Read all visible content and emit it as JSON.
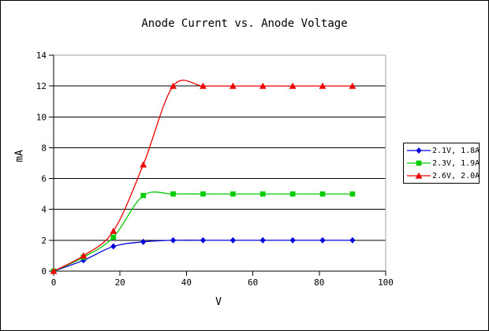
{
  "window": {
    "background": "#ffffff",
    "outer_border_color": "#000000",
    "plot_frame_gray": "#a0a0a0"
  },
  "chart_data": {
    "type": "line",
    "title": "Anode Current vs. Anode Voltage",
    "xlabel": "V",
    "ylabel": "mA",
    "xlim": [
      0,
      100
    ],
    "ylim": [
      0,
      14
    ],
    "xticks": [
      0,
      20,
      40,
      60,
      80,
      100
    ],
    "yticks": [
      0,
      2,
      4,
      6,
      8,
      10,
      12,
      14
    ],
    "grid": "horizontal",
    "legend_position": "right-outside",
    "smoothing": "spline",
    "x": [
      0,
      9,
      18,
      27,
      36,
      45,
      54,
      63,
      72,
      81,
      90
    ],
    "series": [
      {
        "name": "2.1V, 1.8A",
        "color": "#0000dd",
        "marker": "diamond",
        "values": [
          0,
          0.7,
          1.6,
          1.9,
          2,
          2,
          2,
          2,
          2,
          2,
          2
        ]
      },
      {
        "name": "2.3V, 1.9A",
        "color": "#00cc00",
        "marker": "square",
        "values": [
          0,
          0.9,
          2.2,
          4.9,
          5,
          5,
          5,
          5,
          5,
          5,
          5
        ]
      },
      {
        "name": "2.6V, 2.0A",
        "color": "#ee0000",
        "marker": "triangle",
        "values": [
          0,
          1.0,
          2.6,
          6.9,
          12,
          12,
          12,
          12,
          12,
          12,
          12
        ]
      }
    ]
  }
}
